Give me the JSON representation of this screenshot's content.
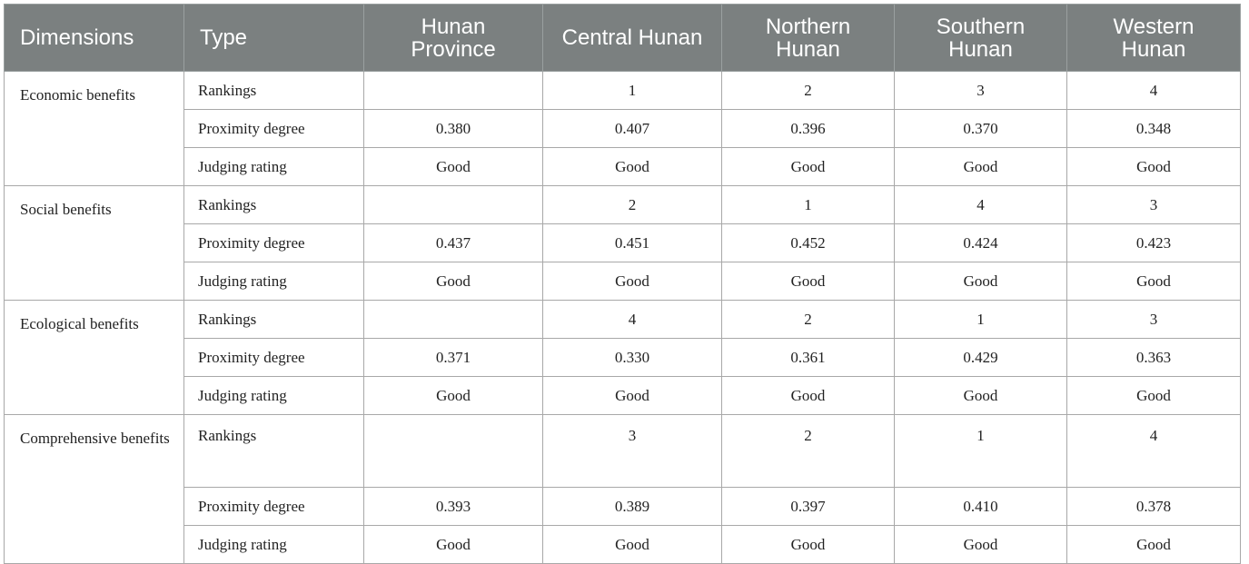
{
  "headers": {
    "dimensions": "Dimensions",
    "type": "Type",
    "hunan_province": "Hunan Province",
    "central_hunan": "Central Hunan",
    "northern_hunan": "Northern Hunan",
    "southern_hunan": "Southern Hunan",
    "western_hunan": "Western Hunan"
  },
  "groups": [
    {
      "dimension": "Economic benefits",
      "rows": [
        {
          "type": "Rankings",
          "values": [
            "",
            "1",
            "2",
            "3",
            "4"
          ]
        },
        {
          "type": "Proximity degree",
          "values": [
            "0.380",
            "0.407",
            "0.396",
            "0.370",
            "0.348"
          ]
        },
        {
          "type": "Judging rating",
          "values": [
            "Good",
            "Good",
            "Good",
            "Good",
            "Good"
          ]
        }
      ]
    },
    {
      "dimension": "Social benefits",
      "rows": [
        {
          "type": "Rankings",
          "values": [
            "",
            "2",
            "1",
            "4",
            "3"
          ]
        },
        {
          "type": "Proximity degree",
          "values": [
            "0.437",
            "0.451",
            "0.452",
            "0.424",
            "0.423"
          ]
        },
        {
          "type": "Judging rating",
          "values": [
            "Good",
            "Good",
            "Good",
            "Good",
            "Good"
          ]
        }
      ]
    },
    {
      "dimension": "Ecological benefits",
      "rows": [
        {
          "type": "Rankings",
          "values": [
            "",
            "4",
            "2",
            "1",
            "3"
          ]
        },
        {
          "type": "Proximity degree",
          "values": [
            "0.371",
            "0.330",
            "0.361",
            "0.429",
            "0.363"
          ]
        },
        {
          "type": "Judging rating",
          "values": [
            "Good",
            "Good",
            "Good",
            "Good",
            "Good"
          ]
        }
      ]
    },
    {
      "dimension": "Comprehensive benefits",
      "rows": [
        {
          "type": "Rankings",
          "values": [
            "",
            "3",
            "2",
            "1",
            "4"
          ]
        },
        {
          "type": "Proximity degree",
          "values": [
            "0.393",
            "0.389",
            "0.397",
            "0.410",
            "0.378"
          ]
        },
        {
          "type": "Judging rating",
          "values": [
            "Good",
            "Good",
            "Good",
            "Good",
            "Good"
          ]
        }
      ]
    }
  ]
}
